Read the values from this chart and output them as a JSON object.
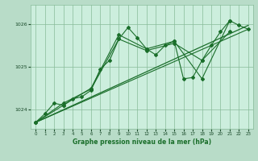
{
  "background_color": "#b8dcc8",
  "plot_bg_color": "#cceedd",
  "grid_color": "#88bb99",
  "line_color": "#1a6e2a",
  "xlabel": "Graphe pression niveau de la mer (hPa)",
  "xlim": [
    -0.5,
    23.5
  ],
  "ylim": [
    1023.55,
    1026.45
  ],
  "yticks": [
    1024,
    1025,
    1026
  ],
  "xticks": [
    0,
    1,
    2,
    3,
    4,
    5,
    6,
    7,
    8,
    9,
    10,
    11,
    12,
    13,
    14,
    15,
    16,
    17,
    18,
    19,
    20,
    21,
    22,
    23
  ],
  "series": [
    {
      "x": [
        0,
        1,
        2,
        3,
        4,
        5,
        6,
        7,
        8,
        9,
        10,
        11,
        12,
        13,
        14,
        15,
        16,
        17,
        18,
        19,
        20,
        21,
        22,
        23
      ],
      "y": [
        1023.7,
        1023.9,
        1024.15,
        1024.1,
        1024.25,
        1024.3,
        1024.45,
        1024.95,
        1025.15,
        1025.65,
        1025.92,
        1025.68,
        1025.42,
        1025.28,
        1025.5,
        1025.6,
        1024.72,
        1024.75,
        1025.15,
        1025.5,
        1025.82,
        1026.08,
        1025.97,
        1025.88
      ],
      "marker": "D",
      "markersize": 2.0,
      "linewidth": 0.8
    },
    {
      "x": [
        0,
        3,
        6,
        9,
        12,
        15,
        18,
        21
      ],
      "y": [
        1023.7,
        1024.1,
        1024.5,
        1025.75,
        1025.42,
        1025.6,
        1024.72,
        1026.08
      ],
      "marker": "D",
      "markersize": 2.0,
      "linewidth": 0.8
    },
    {
      "x": [
        0,
        3,
        6,
        9,
        12,
        15,
        18,
        21
      ],
      "y": [
        1023.7,
        1024.15,
        1024.48,
        1025.65,
        1025.38,
        1025.55,
        1025.15,
        1025.82
      ],
      "marker": "D",
      "markersize": 2.0,
      "linewidth": 0.8
    },
    {
      "x": [
        0,
        23
      ],
      "y": [
        1023.7,
        1025.97
      ],
      "marker": null,
      "linewidth": 0.9
    },
    {
      "x": [
        0,
        23
      ],
      "y": [
        1023.7,
        1025.88
      ],
      "marker": null,
      "linewidth": 0.8
    }
  ]
}
